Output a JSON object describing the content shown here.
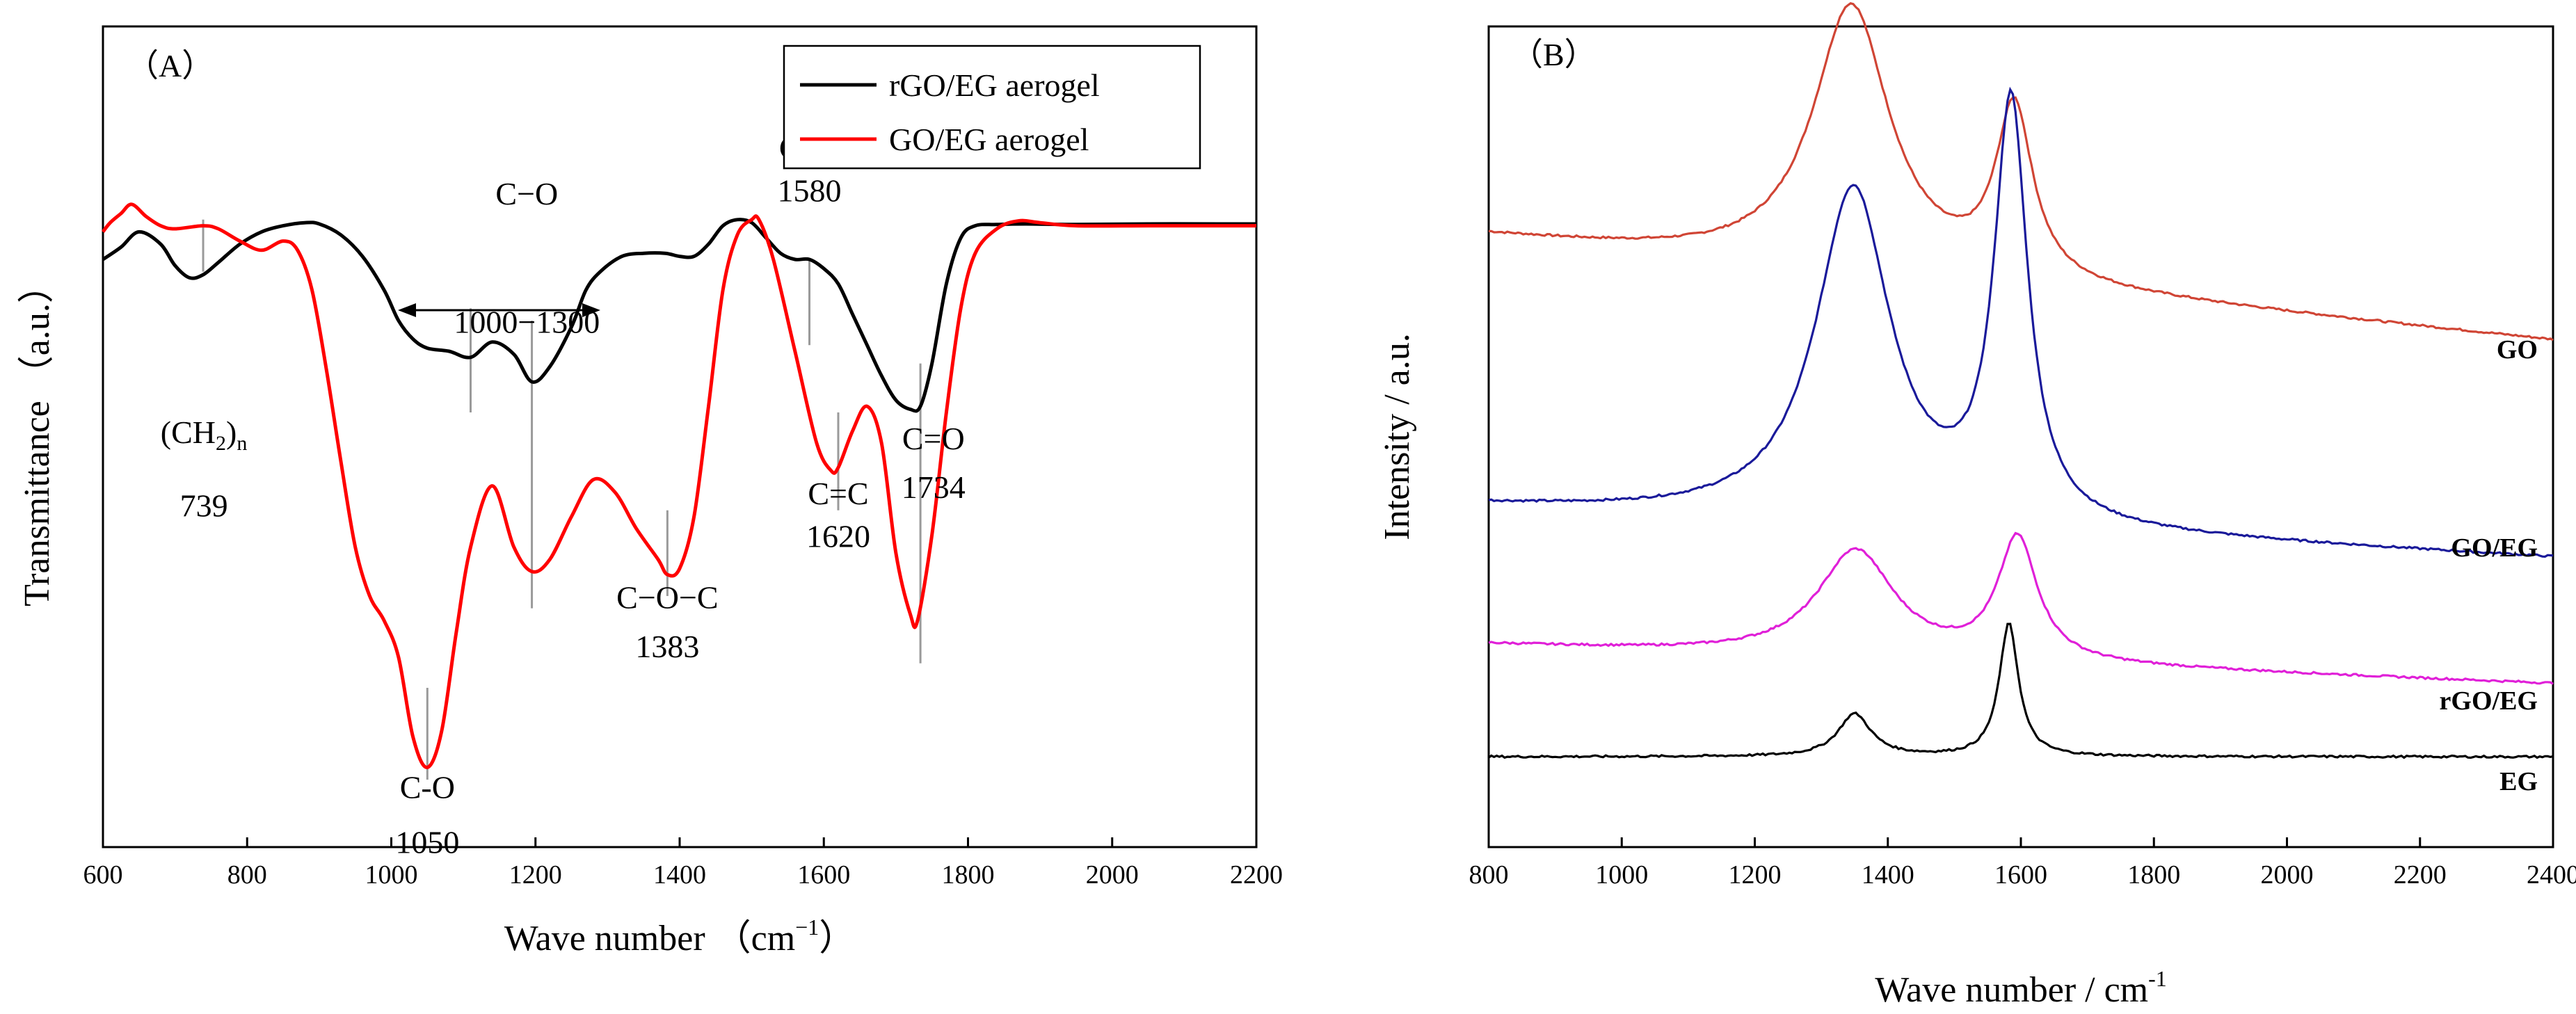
{
  "chart_data": [
    {
      "id": "A",
      "type": "line",
      "panel_label": "（A）",
      "xlabel": "Wave number",
      "xlabel_unit_prefix": "（cm",
      "xlabel_unit_exp": "−1",
      "xlabel_unit_suffix": "）",
      "ylabel": "Transmittance （a.u.）",
      "xlim": [
        600,
        2200
      ],
      "xticks": [
        600,
        800,
        1000,
        1200,
        1400,
        1600,
        1800,
        2000,
        2200
      ],
      "ylim": [
        0,
        1
      ],
      "legend_position": "top-right",
      "series": [
        {
          "name": "rGO/EG aerogel",
          "color": "#000000",
          "x": [
            600,
            625,
            650,
            680,
            700,
            720,
            739,
            760,
            790,
            820,
            850,
            880,
            900,
            930,
            960,
            990,
            1010,
            1030,
            1050,
            1080,
            1110,
            1140,
            1170,
            1195,
            1220,
            1250,
            1270,
            1290,
            1320,
            1350,
            1380,
            1400,
            1420,
            1440,
            1460,
            1480,
            1500,
            1520,
            1540,
            1560,
            1580,
            1600,
            1620,
            1640,
            1660,
            1680,
            1700,
            1720,
            1734,
            1750,
            1770,
            1790,
            1810,
            1840,
            1880,
            1950,
            2050,
            2150,
            2200
          ],
          "values": [
            0.9,
            0.92,
            0.945,
            0.925,
            0.89,
            0.87,
            0.875,
            0.895,
            0.925,
            0.945,
            0.955,
            0.96,
            0.958,
            0.94,
            0.905,
            0.85,
            0.8,
            0.77,
            0.755,
            0.75,
            0.74,
            0.765,
            0.745,
            0.7,
            0.725,
            0.79,
            0.85,
            0.88,
            0.905,
            0.91,
            0.91,
            0.905,
            0.905,
            0.925,
            0.955,
            0.965,
            0.96,
            0.935,
            0.91,
            0.9,
            0.9,
            0.885,
            0.86,
            0.81,
            0.76,
            0.71,
            0.67,
            0.655,
            0.66,
            0.73,
            0.86,
            0.935,
            0.955,
            0.957,
            0.958,
            0.957,
            0.958,
            0.958,
            0.958
          ]
        },
        {
          "name": "GO/EG aerogel",
          "color": "#ff0000",
          "x": [
            600,
            610,
            625,
            640,
            660,
            680,
            700,
            739,
            760,
            790,
            820,
            850,
            870,
            890,
            910,
            930,
            950,
            970,
            990,
            1010,
            1030,
            1050,
            1070,
            1090,
            1110,
            1140,
            1170,
            1195,
            1220,
            1250,
            1280,
            1310,
            1340,
            1370,
            1383,
            1400,
            1420,
            1440,
            1460,
            1480,
            1500,
            1510,
            1530,
            1560,
            1590,
            1610,
            1620,
            1640,
            1660,
            1680,
            1700,
            1720,
            1730,
            1750,
            1770,
            1790,
            1810,
            1840,
            1870,
            1900,
            1950,
            2050,
            2150,
            2200
          ],
          "values": [
            0.945,
            0.96,
            0.975,
            0.99,
            0.97,
            0.955,
            0.95,
            0.955,
            0.95,
            0.93,
            0.915,
            0.93,
            0.915,
            0.85,
            0.72,
            0.57,
            0.43,
            0.35,
            0.31,
            0.25,
            0.12,
            0.07,
            0.13,
            0.29,
            0.43,
            0.53,
            0.43,
            0.39,
            0.41,
            0.48,
            0.54,
            0.52,
            0.46,
            0.41,
            0.385,
            0.395,
            0.48,
            0.66,
            0.85,
            0.94,
            0.965,
            0.965,
            0.9,
            0.75,
            0.6,
            0.555,
            0.56,
            0.62,
            0.66,
            0.6,
            0.42,
            0.32,
            0.31,
            0.45,
            0.65,
            0.82,
            0.91,
            0.95,
            0.963,
            0.96,
            0.955,
            0.955,
            0.955,
            0.955
          ]
        }
      ],
      "annotations": [
        {
          "text": "C−O",
          "x": 1188,
          "y": 0.99
        },
        {
          "text": "1000−1300",
          "x": 1188,
          "y": 0.78
        },
        {
          "text": "(CH",
          "sub": "2",
          "close": ")",
          "sub2": "n",
          "x": 740,
          "y": 0.6
        },
        {
          "text": "739",
          "x": 740,
          "y": 0.48
        },
        {
          "text": "C=C",
          "x": 1580,
          "y": 1.065
        },
        {
          "text": "1580",
          "x": 1580,
          "y": 0.995
        },
        {
          "text": "C=C",
          "x": 1620,
          "y": 0.5
        },
        {
          "text": "1620",
          "x": 1620,
          "y": 0.43
        },
        {
          "text": "C=O",
          "x": 1752,
          "y": 0.59
        },
        {
          "text": "1734",
          "x": 1752,
          "y": 0.51
        },
        {
          "text": "C−O−C",
          "x": 1383,
          "y": 0.33
        },
        {
          "text": "1383",
          "x": 1383,
          "y": 0.25
        },
        {
          "text": "C-O",
          "x": 1050,
          "y": 0.02
        },
        {
          "text": "1050",
          "x": 1050,
          "y": -0.07
        }
      ]
    },
    {
      "id": "B",
      "type": "line",
      "panel_label": "（B）",
      "xlabel": "Wave number / cm",
      "xlabel_exp": "-1",
      "ylabel": "Intensity / a.u.",
      "xlim": [
        800,
        2400
      ],
      "xticks": [
        800,
        1000,
        1200,
        1400,
        1600,
        1800,
        2000,
        2200,
        2400
      ],
      "ylim": [
        0,
        1
      ],
      "series": [
        {
          "name": "GO",
          "color": "#d04535",
          "baseline": 0.689,
          "bg_slope": -8e-05,
          "peak_d": {
            "center": 1345,
            "width": 70,
            "height": 0.323
          },
          "peak_g": {
            "center": 1590,
            "width": 42,
            "height": 0.208
          }
        },
        {
          "name": "GO/EG",
          "color": "#1a1a9a",
          "baseline": 0.388,
          "bg_slope": -4e-05,
          "peak_d": {
            "center": 1348,
            "width": 68,
            "height": 0.405
          },
          "peak_g": {
            "center": 1585,
            "width": 38,
            "height": 0.507
          }
        },
        {
          "name": "rGO/EG",
          "color": "#e020d8",
          "baseline": 0.226,
          "bg_slope": -3e-05,
          "peak_d": {
            "center": 1352,
            "width": 70,
            "height": 0.13
          },
          "peak_g": {
            "center": 1595,
            "width": 45,
            "height": 0.149
          }
        },
        {
          "name": "EG",
          "color": "#000000",
          "baseline": 0.11,
          "bg_slope": 0.0,
          "peak_d": {
            "center": 1350,
            "width": 30,
            "height": 0.052
          },
          "peak_g": {
            "center": 1582,
            "width": 22,
            "height": 0.162
          }
        }
      ]
    }
  ]
}
